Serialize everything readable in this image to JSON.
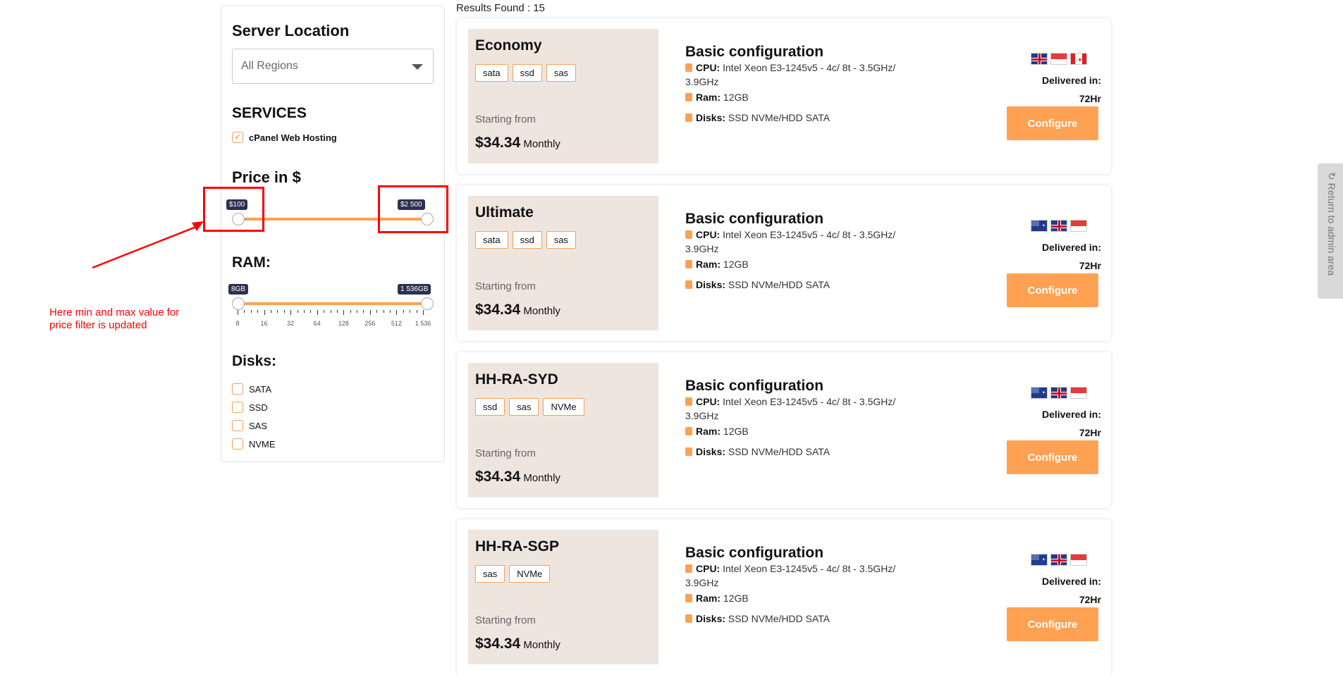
{
  "sidebar": {
    "server_location_title": "Server Location",
    "region_select": "All Regions",
    "services_title": "SERVICES",
    "service_option": "cPanel Web Hosting",
    "price_title": "Price in $",
    "price_min": "$100",
    "price_max": "$2 500",
    "ram_title": "RAM:",
    "ram_min": "8GB",
    "ram_max": "1 536GB",
    "ram_ticks": [
      "8",
      "16",
      "32",
      "64",
      "128",
      "256",
      "512",
      "1 536"
    ],
    "disks_title": "Disks:",
    "disks": [
      "SATA",
      "SSD",
      "SAS",
      "NVME"
    ]
  },
  "results_label": "Results Found : 15",
  "cards": [
    {
      "name": "Economy",
      "tags": [
        "sata",
        "ssd",
        "sas"
      ],
      "flags": [
        "uk",
        "sg",
        "ca"
      ]
    },
    {
      "name": "Ultimate",
      "tags": [
        "sata",
        "ssd",
        "sas"
      ],
      "flags": [
        "au",
        "uk",
        "sg"
      ]
    },
    {
      "name": "HH-RA-SYD",
      "tags": [
        "ssd",
        "sas",
        "NVMe"
      ],
      "flags": [
        "au",
        "uk",
        "sg"
      ]
    },
    {
      "name": "HH-RA-SGP",
      "tags": [
        "sas",
        "NVMe"
      ],
      "flags": [
        "au",
        "uk",
        "sg"
      ]
    }
  ],
  "card_common": {
    "starting_from": "Starting from",
    "price": "$34.34",
    "period": "Monthly",
    "config_title": "Basic configuration",
    "cpu_label": "CPU:",
    "cpu_value": "Intel Xeon E3-1245v5 - 4c/ 8t - 3.5GHz/ 3.9GHz",
    "ram_label": "Ram:",
    "ram_value": "12GB",
    "disks_label": "Disks:",
    "disks_value": "SSD NVMe/HDD SATA",
    "delivered_label": "Delivered in:",
    "delivered_value": "72Hr",
    "configure_label": "Configure"
  },
  "admin_tab": "Return to admin area",
  "annotation": "Here min and max value for price filter is updated",
  "colors": {
    "accent": "#ffa152",
    "panel": "#efe5df",
    "annotation": "#ff0000"
  }
}
